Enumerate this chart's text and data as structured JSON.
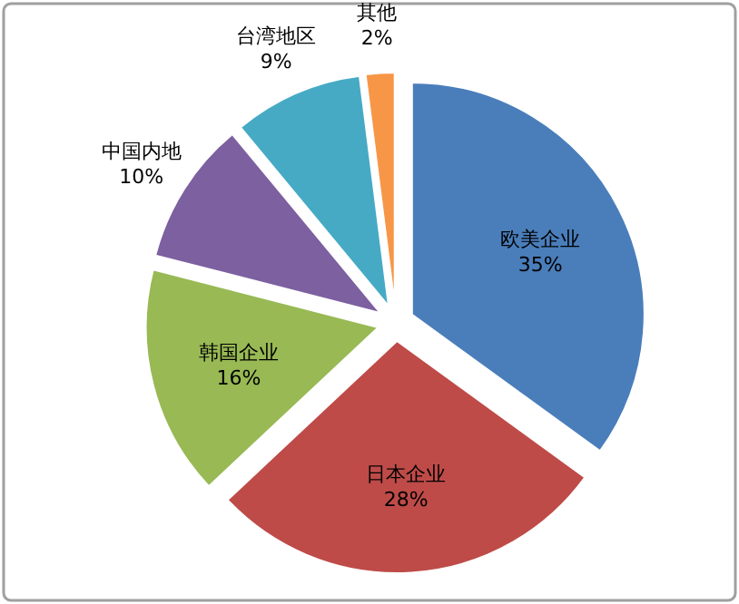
{
  "chart_data": {
    "type": "pie",
    "categories": [
      "欧美企业",
      "日本企业",
      "韩国企业",
      "中国内地",
      "台湾地区",
      "其他"
    ],
    "values": [
      35,
      28,
      16,
      10,
      9,
      2
    ],
    "colors": [
      "#4a7ebb",
      "#be4b48",
      "#98b954",
      "#7d60a0",
      "#46aac5",
      "#f79646"
    ],
    "value_labels": [
      "35%",
      "28%",
      "16%",
      "10%",
      "9%",
      "2%"
    ]
  }
}
